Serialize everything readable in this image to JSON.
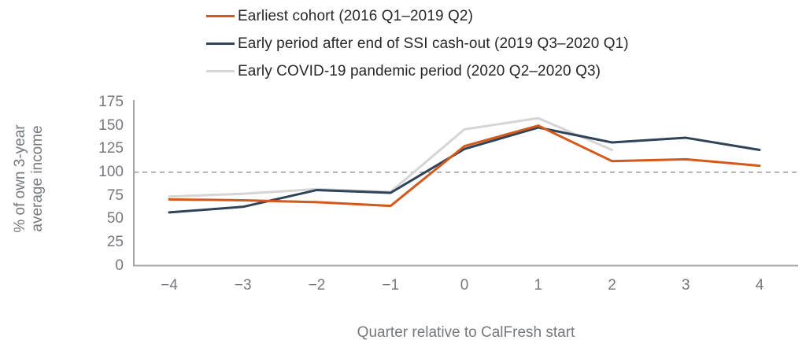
{
  "colors": {
    "background": "#FFFFFF",
    "axis_line": "#A4A7AA",
    "tick_text": "#75797D",
    "legend_text": "#262729",
    "reference_line": "#97999C"
  },
  "chart_data": {
    "type": "line",
    "title": "",
    "xlabel": "Quarter relative to CalFresh start",
    "ylabel": "% of own 3-year average income",
    "x": [
      -4,
      -3,
      -2,
      -1,
      0,
      1,
      2,
      3,
      4
    ],
    "x_tick_labels": [
      "−4",
      "−3",
      "−2",
      "−1",
      "0",
      "1",
      "2",
      "3",
      "4"
    ],
    "yticks": [
      0,
      25,
      50,
      75,
      100,
      125,
      150,
      175
    ],
    "ylim": [
      0,
      175
    ],
    "grid": false,
    "legend_position": "top-left",
    "reference_line": {
      "value": 100,
      "style": "dashed",
      "color": "#97999C"
    },
    "series": [
      {
        "name": "Earliest cohort (2016 Q1–2019 Q2)",
        "color": "#D4581C",
        "values": [
          71,
          70,
          68,
          64,
          128,
          150,
          112,
          114,
          107
        ]
      },
      {
        "name": "Early period after end of SSI cash-out (2019 Q3–2020 Q1)",
        "color": "#2F4458",
        "values": [
          57,
          63,
          81,
          78,
          125,
          148,
          132,
          137,
          124
        ]
      },
      {
        "name": "Early COVID-19 pandemic period (2020 Q2–2020 Q3)",
        "color": "#D5D5D5",
        "values": [
          74,
          77,
          82,
          79,
          146,
          158,
          124,
          null,
          null
        ]
      }
    ]
  }
}
